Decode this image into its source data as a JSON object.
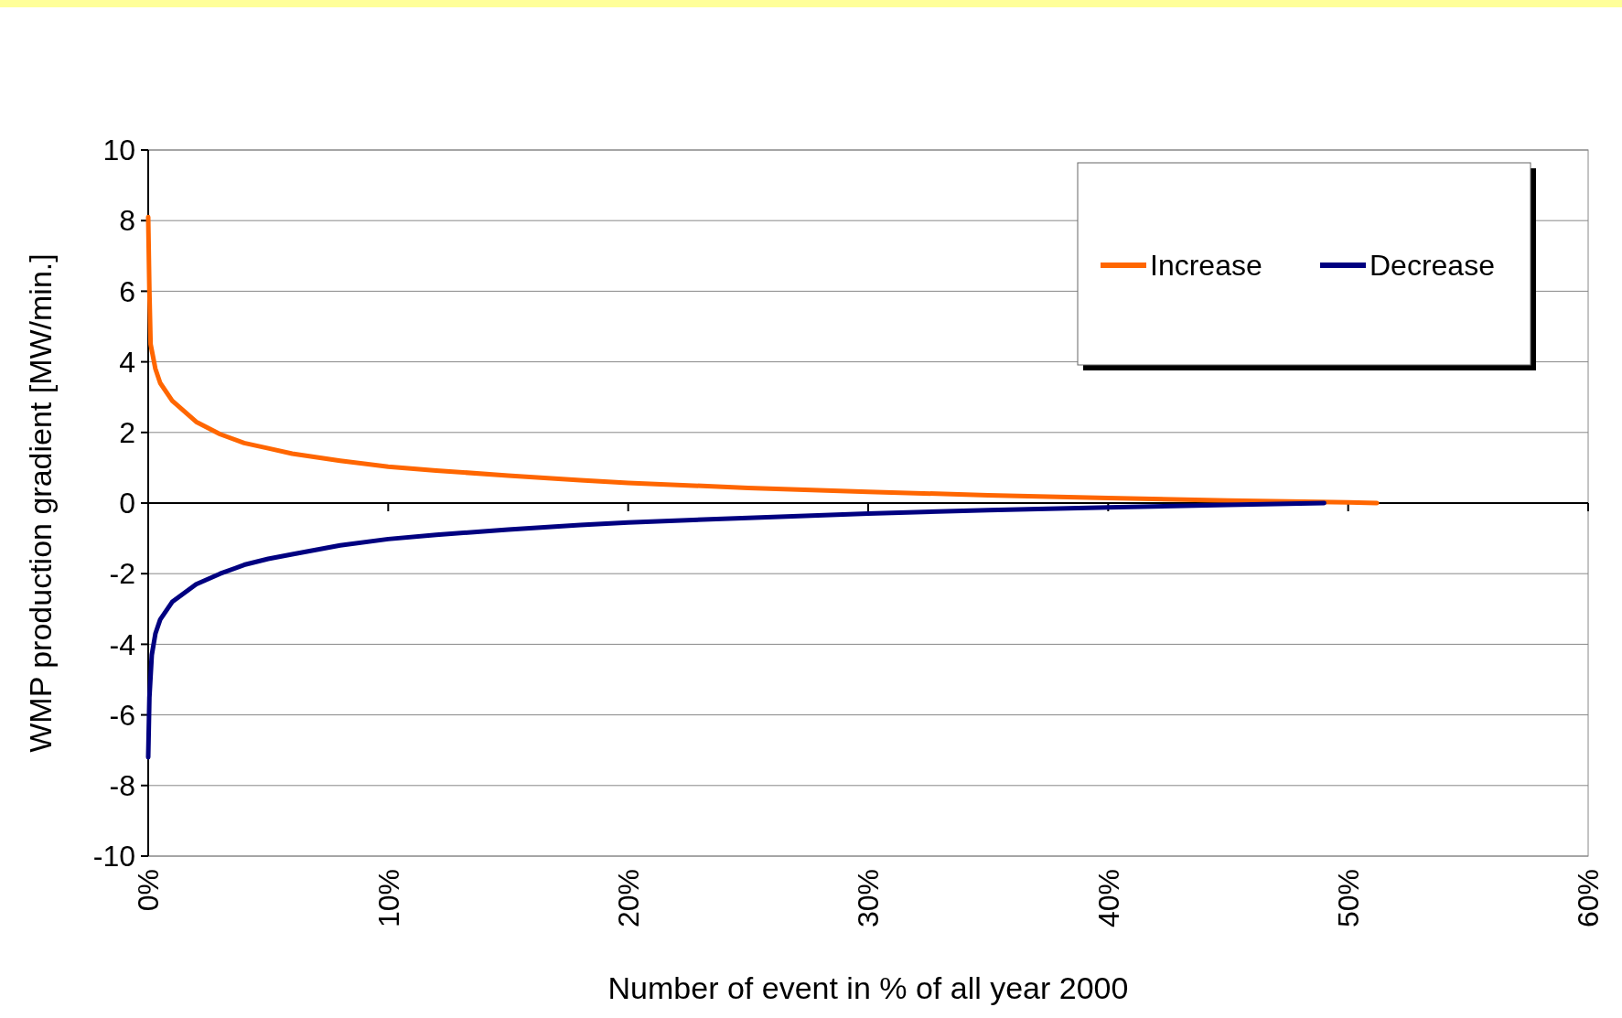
{
  "chart_data": {
    "type": "line",
    "xlabel": "Number of event in % of all year 2000",
    "ylabel": "WMP production gradient [MW/min.]",
    "xlim": [
      0,
      60
    ],
    "ylim": [
      -10,
      10
    ],
    "xticks": [
      {
        "value": 0,
        "label": "0%"
      },
      {
        "value": 10,
        "label": "10%"
      },
      {
        "value": 20,
        "label": "20%"
      },
      {
        "value": 30,
        "label": "30%"
      },
      {
        "value": 40,
        "label": "40%"
      },
      {
        "value": 50,
        "label": "50%"
      },
      {
        "value": 60,
        "label": "60%"
      }
    ],
    "yticks": [
      -10,
      -8,
      -6,
      -4,
      -2,
      0,
      2,
      4,
      6,
      8,
      10
    ],
    "grid": "y",
    "legend": "top right",
    "line_style": "solid",
    "marker": "none",
    "series": [
      {
        "name": "Increase",
        "color": "#ff6600",
        "x": [
          0,
          0.05,
          0.1,
          0.3,
          0.5,
          1,
          2,
          3,
          4,
          5,
          6,
          8,
          10,
          12,
          15,
          18,
          20,
          25,
          30,
          35,
          40,
          45,
          50,
          51.2
        ],
        "values": [
          8.1,
          6,
          4.5,
          3.8,
          3.4,
          2.9,
          2.3,
          1.95,
          1.7,
          1.55,
          1.4,
          1.2,
          1.03,
          0.92,
          0.78,
          0.65,
          0.57,
          0.43,
          0.32,
          0.22,
          0.14,
          0.07,
          0.02,
          0
        ]
      },
      {
        "name": "Decrease",
        "color": "#000080",
        "x": [
          0,
          0.05,
          0.15,
          0.3,
          0.5,
          1,
          2,
          3,
          4,
          5,
          6,
          8,
          10,
          12,
          15,
          18,
          20,
          25,
          30,
          35,
          40,
          45,
          49
        ],
        "values": [
          -7.2,
          -5.5,
          -4.3,
          -3.7,
          -3.3,
          -2.8,
          -2.3,
          -2.0,
          -1.75,
          -1.58,
          -1.45,
          -1.2,
          -1.02,
          -0.9,
          -0.75,
          -0.62,
          -0.55,
          -0.42,
          -0.3,
          -0.2,
          -0.12,
          -0.05,
          0
        ]
      }
    ]
  }
}
